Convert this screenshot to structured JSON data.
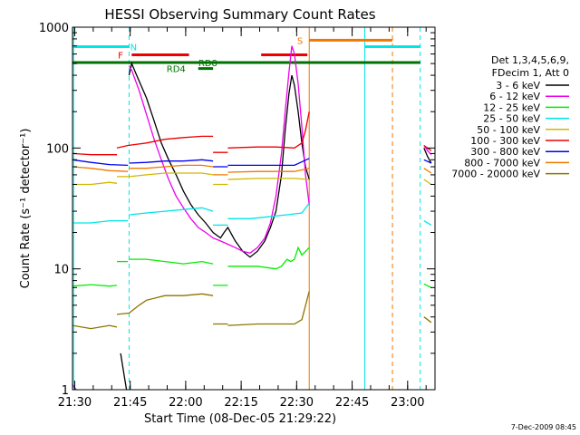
{
  "chart_data": {
    "type": "line",
    "title": "HESSI Observing Summary Count Rates",
    "xlabel": "Start Time (08-Dec-05 21:29:22)",
    "ylabel": "Count Rate (s⁻¹ detector⁻¹)",
    "y_scale": "log",
    "ylim": [
      1,
      1000
    ],
    "xlim_minutes": [
      0,
      98
    ],
    "x_tick_labels": [
      "21:30",
      "21:45",
      "22:00",
      "22:15",
      "22:30",
      "22:45",
      "23:00"
    ],
    "x_tick_minutes": [
      0.6,
      15.6,
      30.6,
      45.6,
      60.6,
      75.6,
      90.6
    ],
    "y_tick_labels": [
      "1",
      "10",
      "100",
      "1000"
    ],
    "y_tick_values": [
      1,
      10,
      100,
      1000
    ],
    "legend": {
      "placement": "right",
      "header": [
        "Det 1,3,4,5,6,9,",
        "FDecim 1, Att 0"
      ]
    },
    "footer_date": "7-Dec-2009 08:45",
    "flags": [
      {
        "label": "N",
        "color": "#00e5e5",
        "label_at": 16.5,
        "bar": [
          [
            0,
            15.3
          ],
          [
            79,
            94
          ]
        ],
        "level": 690
      },
      {
        "label": "S",
        "color": "#f07800",
        "label_at": 61.5,
        "bar": [
          [
            64,
            86.5
          ]
        ],
        "level": 780
      },
      {
        "label": "F",
        "color": "#ee0000",
        "label_at": 13.0,
        "bar": [
          [
            16,
            31.5
          ],
          [
            51,
            63.5
          ]
        ],
        "level": 590
      },
      {
        "label": "RD8",
        "color": "#007000",
        "label_at": 36.6,
        "bar": [
          [
            0,
            94
          ]
        ],
        "level": 510
      },
      {
        "label": "RD4",
        "color": "#007000",
        "label_at": 28.0,
        "bar": [
          [
            34,
            38
          ]
        ],
        "level": 455
      }
    ],
    "vertical_markers": [
      {
        "minute": 0.3,
        "color": "#00e5e5",
        "style": "solid"
      },
      {
        "minute": 15.3,
        "color": "#00e5e5",
        "style": "dashed"
      },
      {
        "minute": 64.0,
        "color": "#f07800",
        "style": "solid"
      },
      {
        "minute": 79.0,
        "color": "#00e5e5",
        "style": "solid"
      },
      {
        "minute": 86.5,
        "color": "#f07800",
        "style": "dashed"
      },
      {
        "minute": 94.0,
        "color": "#00e5e5",
        "style": "dashed"
      }
    ],
    "series": [
      {
        "name": "3 - 6 keV",
        "color": "#000000",
        "segments": [
          [
            [
              13.0,
              2.0
            ],
            [
              14.0,
              1.3
            ],
            [
              14.6,
              1.0
            ]
          ],
          [
            [
              15.3,
              400
            ],
            [
              16.0,
              500
            ],
            [
              17.5,
              390
            ],
            [
              20.0,
              260
            ],
            [
              22.0,
              170
            ],
            [
              24.0,
              110
            ],
            [
              26.0,
              80
            ],
            [
              28.0,
              60
            ],
            [
              30.0,
              44
            ],
            [
              32.0,
              34
            ],
            [
              34.0,
              28
            ],
            [
              36.0,
              24
            ],
            [
              38.0,
              20
            ],
            [
              40.0,
              18
            ],
            [
              41.0,
              20
            ],
            [
              42.0,
              22
            ],
            [
              44.0,
              17
            ],
            [
              46.0,
              14
            ],
            [
              48.0,
              12.5
            ],
            [
              50.0,
              14
            ],
            [
              52.0,
              17
            ],
            [
              53.5,
              22
            ],
            [
              55.0,
              30
            ],
            [
              56.5,
              60
            ],
            [
              57.5,
              140
            ],
            [
              58.5,
              280
            ],
            [
              59.3,
              400
            ],
            [
              60.0,
              330
            ],
            [
              61.0,
              200
            ],
            [
              62.0,
              110
            ],
            [
              63.0,
              70
            ],
            [
              64.0,
              55
            ]
          ],
          [
            [
              95.0,
              100
            ],
            [
              96.0,
              85
            ],
            [
              97.0,
              75
            ]
          ]
        ]
      },
      {
        "name": "6 - 12 keV",
        "color": "#ee00ee",
        "segments": [
          [
            [
              0.0,
              1.1
            ],
            [
              1.0,
              1.0
            ]
          ],
          [
            [
              15.3,
              480
            ],
            [
              16.0,
              440
            ],
            [
              18.0,
              300
            ],
            [
              20.0,
              190
            ],
            [
              22.0,
              120
            ],
            [
              24.0,
              80
            ],
            [
              26.0,
              55
            ],
            [
              28.0,
              40
            ],
            [
              30.0,
              32
            ],
            [
              32.0,
              26
            ],
            [
              34.0,
              22
            ],
            [
              36.0,
              20
            ],
            [
              38.0,
              18
            ],
            [
              40.0,
              17
            ],
            [
              42.0,
              16
            ],
            [
              44.0,
              15
            ],
            [
              46.0,
              14
            ],
            [
              48.0,
              13.5
            ],
            [
              50.0,
              15
            ],
            [
              52.0,
              18
            ],
            [
              53.5,
              24
            ],
            [
              55.0,
              40
            ],
            [
              56.5,
              90
            ],
            [
              57.5,
              200
            ],
            [
              58.5,
              420
            ],
            [
              59.3,
              700
            ],
            [
              60.0,
              600
            ],
            [
              61.0,
              340
            ],
            [
              62.0,
              150
            ],
            [
              63.0,
              60
            ],
            [
              64.0,
              34
            ]
          ],
          [
            [
              95.0,
              105
            ],
            [
              96.0,
              95
            ],
            [
              97.0,
              88
            ]
          ]
        ]
      },
      {
        "name": "12 - 25 keV",
        "color": "#00ee00",
        "segments": [
          [
            [
              0.0,
              7.2
            ],
            [
              5.0,
              7.4
            ],
            [
              10.0,
              7.2
            ],
            [
              12.0,
              7.3
            ]
          ],
          [
            [
              12.0,
              11.5
            ],
            [
              15.0,
              11.5
            ]
          ],
          [
            [
              15.3,
              12
            ],
            [
              20.0,
              12
            ],
            [
              25.0,
              11.5
            ],
            [
              30.0,
              11
            ],
            [
              35.0,
              11.5
            ],
            [
              38.0,
              11
            ]
          ],
          [
            [
              38.0,
              7.3
            ],
            [
              42.0,
              7.3
            ]
          ],
          [
            [
              42.0,
              10.5
            ],
            [
              50.0,
              10.5
            ],
            [
              55.0,
              10
            ],
            [
              56.5,
              10.5
            ],
            [
              58.0,
              12
            ],
            [
              59.0,
              11.5
            ],
            [
              60.0,
              12
            ],
            [
              61.0,
              15
            ],
            [
              62.0,
              13
            ],
            [
              64.0,
              15
            ]
          ],
          [
            [
              95.0,
              7.5
            ],
            [
              97.0,
              7.0
            ]
          ]
        ]
      },
      {
        "name": "25 - 50 keV",
        "color": "#00e5e5",
        "segments": [
          [
            [
              0.0,
              24
            ],
            [
              5.0,
              24
            ],
            [
              10.0,
              25
            ],
            [
              15.0,
              25
            ]
          ],
          [
            [
              15.3,
              28
            ],
            [
              20.0,
              29
            ],
            [
              25.0,
              30
            ],
            [
              30.0,
              31
            ],
            [
              35.0,
              32
            ],
            [
              38.0,
              30
            ]
          ],
          [
            [
              38.0,
              23
            ],
            [
              42.0,
              23
            ]
          ],
          [
            [
              42.0,
              26
            ],
            [
              48.0,
              26
            ],
            [
              53.0,
              27
            ],
            [
              58.0,
              28
            ],
            [
              62.0,
              29
            ],
            [
              64.0,
              35
            ]
          ],
          [
            [
              95.0,
              25
            ],
            [
              97.0,
              23
            ]
          ]
        ]
      },
      {
        "name": "50 - 100 keV",
        "color": "#d0b800",
        "segments": [
          [
            [
              0.0,
              50
            ],
            [
              5.0,
              50
            ],
            [
              10.0,
              52
            ],
            [
              12.0,
              51
            ]
          ],
          [
            [
              12.0,
              58
            ],
            [
              15.3,
              58
            ],
            [
              20.0,
              60
            ],
            [
              25.0,
              62
            ],
            [
              30.0,
              62
            ],
            [
              35.0,
              62
            ],
            [
              38.0,
              60
            ]
          ],
          [
            [
              38.0,
              50
            ],
            [
              42.0,
              50
            ]
          ],
          [
            [
              42.0,
              55
            ],
            [
              50.0,
              56
            ],
            [
              55.0,
              56
            ],
            [
              60.0,
              56
            ],
            [
              64.0,
              55
            ]
          ],
          [
            [
              95.0,
              55
            ],
            [
              97.0,
              50
            ]
          ]
        ]
      },
      {
        "name": "100 - 300 keV",
        "color": "#ee0000",
        "segments": [
          [
            [
              0.0,
              90
            ],
            [
              5.0,
              88
            ],
            [
              10.0,
              88
            ],
            [
              12.0,
              88
            ]
          ],
          [
            [
              12.0,
              100
            ],
            [
              15.0,
              105
            ],
            [
              20.0,
              110
            ],
            [
              25.0,
              118
            ],
            [
              30.0,
              122
            ],
            [
              35.0,
              125
            ],
            [
              38.0,
              125
            ]
          ],
          [
            [
              38.0,
              92
            ],
            [
              42.0,
              92
            ]
          ],
          [
            [
              42.0,
              100
            ],
            [
              50.0,
              102
            ],
            [
              55.0,
              102
            ],
            [
              60.0,
              100
            ],
            [
              62.0,
              110
            ],
            [
              63.0,
              140
            ],
            [
              64.0,
              200
            ]
          ],
          [
            [
              95.0,
              105
            ],
            [
              97.0,
              95
            ]
          ]
        ]
      },
      {
        "name": "300 - 800 keV",
        "color": "#0000ee",
        "segments": [
          [
            [
              0.0,
              80
            ],
            [
              5.0,
              76
            ],
            [
              10.0,
              73
            ],
            [
              15.0,
              72
            ]
          ],
          [
            [
              15.3,
              75
            ],
            [
              20.0,
              76
            ],
            [
              25.0,
              78
            ],
            [
              30.0,
              78
            ],
            [
              35.0,
              80
            ],
            [
              38.0,
              78
            ]
          ],
          [
            [
              38.0,
              70
            ],
            [
              42.0,
              70
            ]
          ],
          [
            [
              42.0,
              72
            ],
            [
              50.0,
              72
            ],
            [
              55.0,
              72
            ],
            [
              60.0,
              72
            ],
            [
              64.0,
              82
            ]
          ],
          [
            [
              95.0,
              80
            ],
            [
              97.0,
              75
            ]
          ]
        ]
      },
      {
        "name": "800 - 7000 keV",
        "color": "#f07800",
        "segments": [
          [
            [
              0.0,
              70
            ],
            [
              5.0,
              68
            ],
            [
              10.0,
              65
            ],
            [
              15.0,
              64
            ]
          ],
          [
            [
              15.3,
              68
            ],
            [
              20.0,
              68
            ],
            [
              25.0,
              70
            ],
            [
              30.0,
              72
            ],
            [
              35.0,
              72
            ],
            [
              38.0,
              70
            ]
          ],
          [
            [
              38.0,
              60
            ],
            [
              42.0,
              60
            ]
          ],
          [
            [
              42.0,
              63
            ],
            [
              50.0,
              64
            ],
            [
              55.0,
              64
            ],
            [
              60.0,
              64
            ],
            [
              64.0,
              68
            ]
          ],
          [
            [
              95.0,
              68
            ],
            [
              97.0,
              62
            ]
          ]
        ]
      },
      {
        "name": "7000 - 20000 keV",
        "color": "#8b7500",
        "segments": [
          [
            [
              0.0,
              3.4
            ],
            [
              5.0,
              3.2
            ],
            [
              10.0,
              3.4
            ],
            [
              12.0,
              3.3
            ]
          ],
          [
            [
              12.0,
              4.2
            ],
            [
              15.3,
              4.3
            ],
            [
              18.0,
              5.0
            ],
            [
              20.0,
              5.5
            ],
            [
              25.0,
              6.0
            ],
            [
              30.0,
              6.0
            ],
            [
              35.0,
              6.2
            ],
            [
              38.0,
              6.0
            ]
          ],
          [
            [
              38.0,
              3.5
            ],
            [
              42.0,
              3.5
            ]
          ],
          [
            [
              42.0,
              3.4
            ],
            [
              50.0,
              3.5
            ],
            [
              55.0,
              3.5
            ],
            [
              60.0,
              3.5
            ],
            [
              62.0,
              3.8
            ],
            [
              64.0,
              6.5
            ]
          ],
          [
            [
              95.0,
              4.0
            ],
            [
              97.0,
              3.6
            ]
          ]
        ]
      }
    ]
  }
}
